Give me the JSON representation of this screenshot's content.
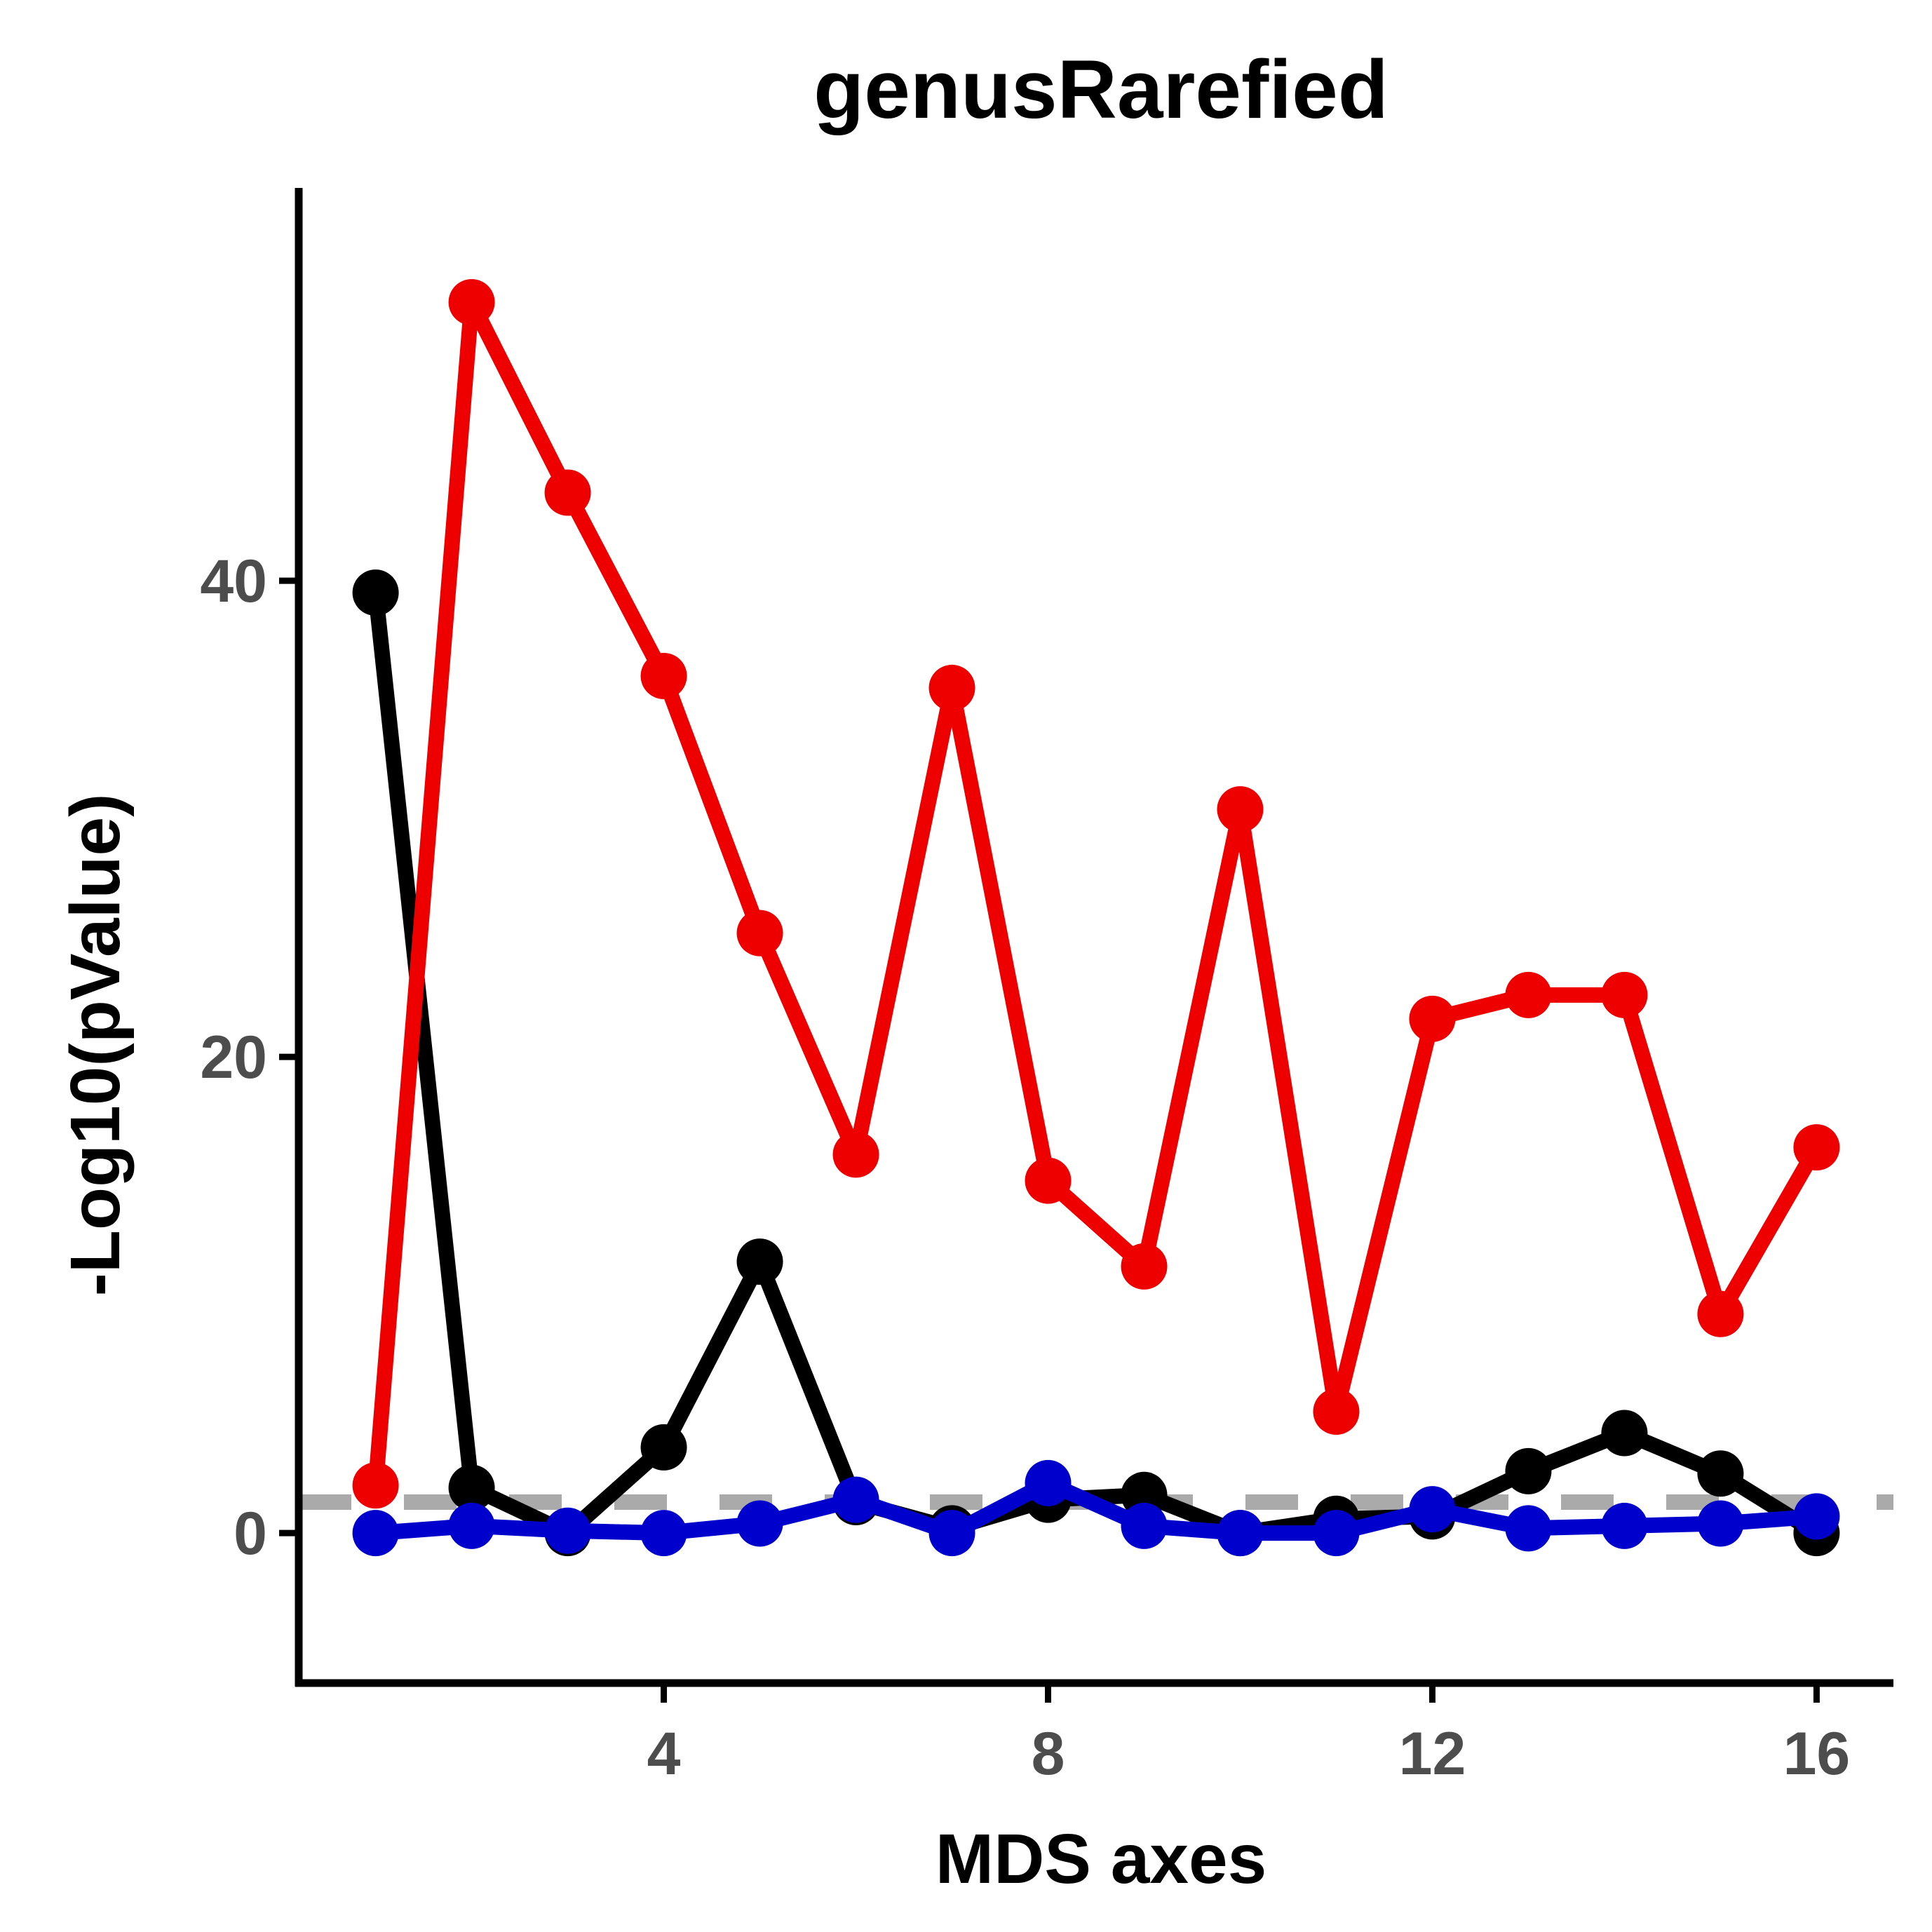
{
  "chart_data": {
    "type": "line",
    "title": "genusRarefied",
    "xlabel": "MDS axes",
    "ylabel": "-Log10(pValue)",
    "xlim": [
      0.2,
      16.8
    ],
    "ylim": [
      -6.3,
      56.5
    ],
    "x_ticks": [
      4,
      8,
      12,
      16
    ],
    "y_ticks": [
      0,
      20,
      40
    ],
    "grid": false,
    "legend": "none",
    "x": [
      1,
      2,
      3,
      4,
      5,
      6,
      7,
      8,
      9,
      10,
      11,
      12,
      13,
      14,
      15,
      16
    ],
    "reference_line": {
      "y": 1.3,
      "style": "dashed",
      "color": "#aaaaaa"
    },
    "series": [
      {
        "color": "#000000",
        "values": [
          39.5,
          1.9,
          0,
          3.6,
          11.4,
          1.3,
          0.2,
          1.4,
          1.6,
          0,
          0.6,
          0.7,
          2.6,
          4.2,
          2.5,
          0
        ]
      },
      {
        "color": "#ee0000",
        "values": [
          2.0,
          51.7,
          43.7,
          36.0,
          25.2,
          15.9,
          35.5,
          14.8,
          11.2,
          30.4,
          5.1,
          21.6,
          22.6,
          22.6,
          9.2,
          16.2
        ]
      },
      {
        "color": "#0000cc",
        "values": [
          0,
          0.3,
          0.1,
          0,
          0.4,
          1.4,
          0,
          2.1,
          0.3,
          0,
          0,
          1.0,
          0.2,
          0.3,
          0.4,
          0.7
        ]
      }
    ]
  }
}
